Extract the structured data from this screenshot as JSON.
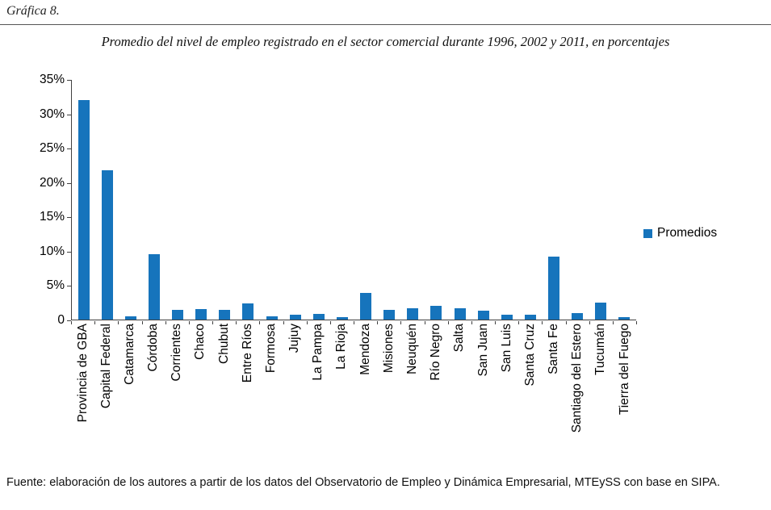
{
  "figure": {
    "caption": "Gráfica 8."
  },
  "chart_data": {
    "type": "bar",
    "title": "Promedio del nivel de empleo registrado en el sector comercial durante 1996, 2002 y 2011, en porcentajes",
    "categories": [
      "Provincia de GBA",
      "Capital Federal",
      "Catamarca",
      "Córdoba",
      "Corrientes",
      "Chaco",
      "Chubut",
      "Entre Ríos",
      "Formosa",
      "Jujuy",
      "La Pampa",
      "La Rioja",
      "Mendoza",
      "Misiones",
      "Neuquén",
      "Río Negro",
      "Salta",
      "San Juan",
      "San Luis",
      "Santa Cruz",
      "Santa Fe",
      "Santiago del Estero",
      "Tucumán",
      "Tierra del Fuego"
    ],
    "values": [
      32,
      21.8,
      0.5,
      9.5,
      1.4,
      1.5,
      1.4,
      2.4,
      0.5,
      0.7,
      0.8,
      0.4,
      3.9,
      1.4,
      1.6,
      2.0,
      1.6,
      1.3,
      0.7,
      0.7,
      9.2,
      0.9,
      2.5,
      0.4
    ],
    "unit": "%",
    "xlabel": "",
    "ylabel": "",
    "ylim": [
      0,
      35
    ],
    "yticks": [
      "35%",
      "30%",
      "25%",
      "20%",
      "15%",
      "10%",
      "5%",
      "0"
    ],
    "ytick_values": [
      35,
      30,
      25,
      20,
      15,
      10,
      5,
      0
    ],
    "grid": false,
    "legend": "Promedios",
    "legend_position": "right",
    "bar_color": "#1674BC"
  },
  "footer": {
    "source": "Fuente: elaboración de los autores a partir de los datos del Observatorio de Empleo y Dinámica Empresarial, MTEySS con base en SIPA."
  }
}
